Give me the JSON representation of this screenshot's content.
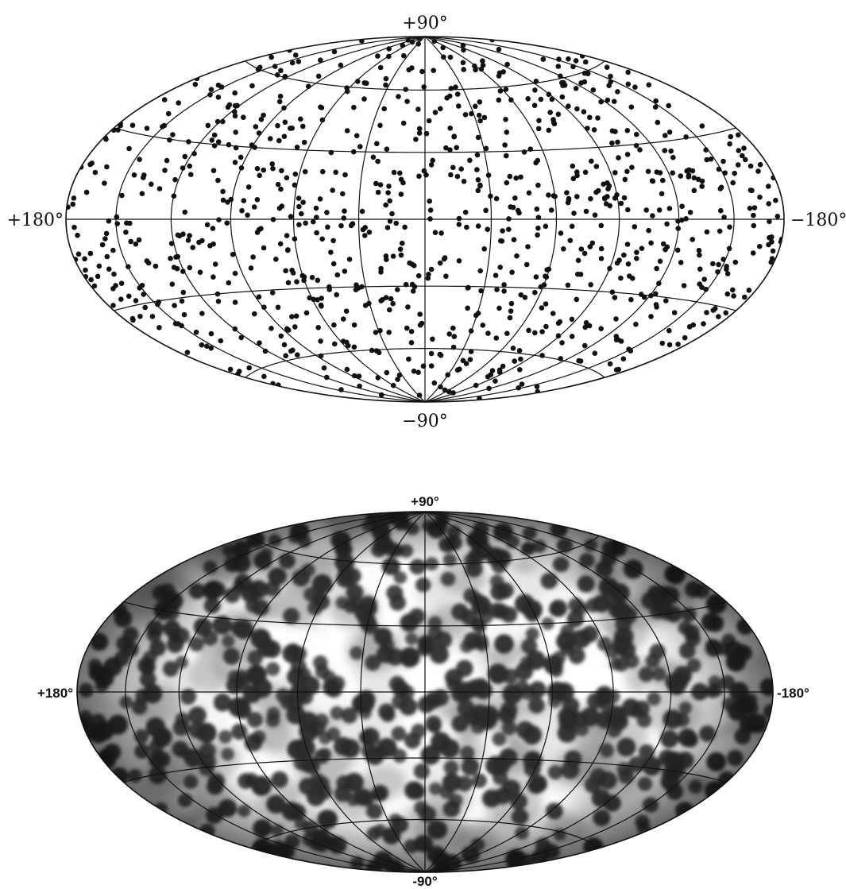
{
  "maps": [
    {
      "style": "point-plot",
      "labels": {
        "north": "+90°",
        "south": "−90°",
        "left": "+180°",
        "right": "−180°"
      },
      "colors": {
        "background": "#ffffff",
        "grid": "#111111",
        "points": "#111111"
      }
    },
    {
      "style": "smoothed-density",
      "labels": {
        "north": "+90°",
        "south": "-90°",
        "left": "+180°",
        "right": "-180°"
      },
      "colors": {
        "background": "#e8e8e8",
        "blobs": "#2a2a2a",
        "grid": "#111111"
      }
    }
  ],
  "projection": "Hammer-Aitoff",
  "grid": {
    "meridian_step_deg": 30,
    "parallel_step_deg": 30
  }
}
